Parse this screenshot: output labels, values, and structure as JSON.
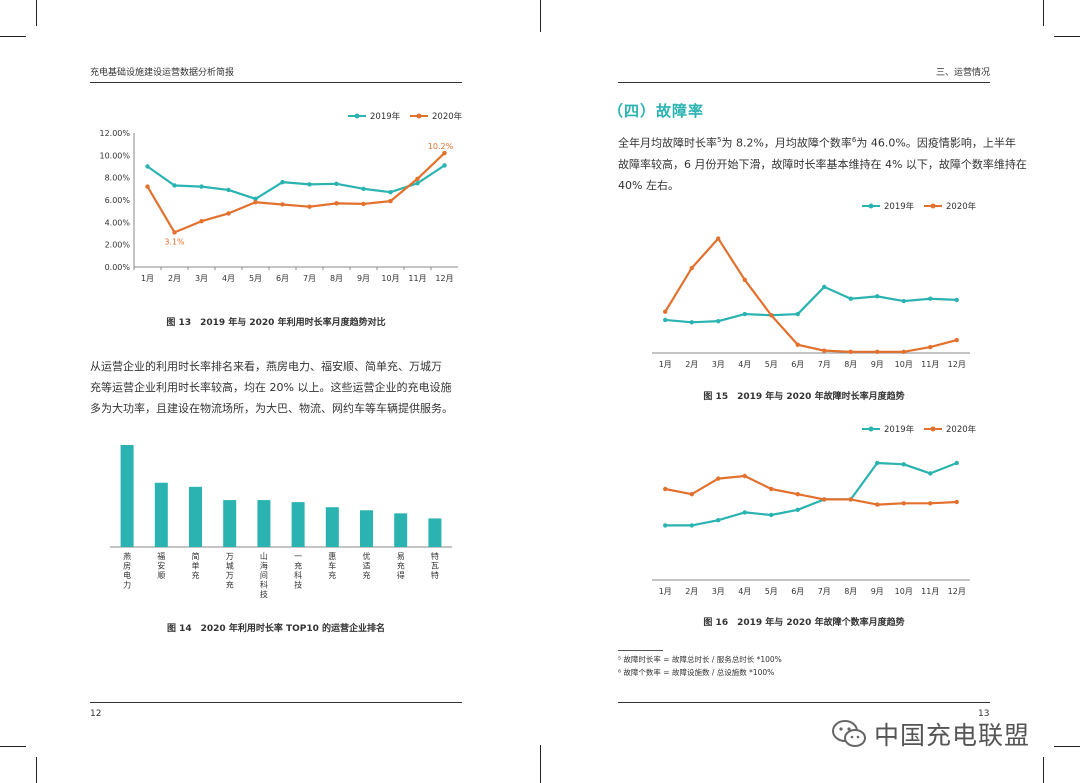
{
  "colors": {
    "teal": "#2ab3b1",
    "orange": "#e3712e"
  },
  "left_page": {
    "header": "充电基础设施建设运营数据分析简报",
    "page_number": "12",
    "paragraph": [
      "从运营企业的利用时长率排名来看，燕房电力、福安顺、简单充、万城万",
      "充等运营企业利用时长率较高，均在 20% 以上。这些运营企业的充电设施",
      "多为大功率，且建设在物流场所，为大巴、物流、网约车等车辆提供服务。"
    ]
  },
  "right_page": {
    "header": "三、运营情况",
    "page_number": "13",
    "section_title": "（四）故障率",
    "paragraph": [
      {
        "pre": "全年月均故障时长率",
        "sup1": "5",
        "mid": "为 8.2%，月均故障个数率",
        "sup2": "6",
        "post": "为 46.0%。因疫情影响，上半年"
      },
      "故障率较高，6 月份开始下滑，故障时长率基本维持在 4% 以下，故障个数率维持在",
      "40% 左右。"
    ],
    "footnotes": [
      "⁵ 故障时长率 = 故障总时长 / 服务总时长 *100%",
      "⁶ 故障个数率 = 故障设施数 / 总设施数 *100%"
    ]
  },
  "watermark": {
    "icon": "wechat-icon",
    "text": "中国充电联盟"
  },
  "chart_data": [
    {
      "id": "fig13",
      "type": "line",
      "title": "图 13　2019 年与 2020 年利用时长率月度趋势对比",
      "categories": [
        "1月",
        "2月",
        "3月",
        "4月",
        "5月",
        "6月",
        "7月",
        "8月",
        "9月",
        "10月",
        "11月",
        "12月"
      ],
      "yticks": [
        "0.00%",
        "2.00%",
        "4.00%",
        "6.00%",
        "8.00%",
        "10.00%",
        "12.00%"
      ],
      "ylim": [
        0,
        12
      ],
      "series": [
        {
          "name": "2019年",
          "color": "#2ab3b1",
          "values": [
            9.0,
            7.3,
            7.2,
            6.9,
            6.1,
            7.6,
            7.4,
            7.45,
            7.0,
            6.7,
            7.5,
            9.1
          ]
        },
        {
          "name": "2020年",
          "color": "#e3712e",
          "values": [
            7.2,
            3.1,
            4.1,
            4.8,
            5.8,
            5.6,
            5.4,
            5.7,
            5.65,
            5.9,
            7.9,
            10.2
          ]
        }
      ],
      "annotations": [
        {
          "series": 1,
          "index": 1,
          "label": "3.1%"
        },
        {
          "series": 1,
          "index": 11,
          "label": "10.2%"
        }
      ]
    },
    {
      "id": "fig14",
      "type": "bar",
      "title": "图 14　2020 年利用时长率 TOP10 的运营企业排名",
      "categories": [
        "燕房电力",
        "福安顺",
        "简单充",
        "万城万充",
        "山海间科技",
        "一充科技",
        "惠车充",
        "优适充",
        "易充得",
        "特瓦特"
      ],
      "values": [
        100,
        63,
        59,
        46,
        46,
        44,
        39,
        36,
        33,
        28
      ],
      "ylim": [
        0,
        100
      ]
    },
    {
      "id": "fig15",
      "type": "line",
      "title": "图 15　2019 年与 2020 年故障时长率月度趋势",
      "categories": [
        "1月",
        "2月",
        "3月",
        "4月",
        "5月",
        "6月",
        "7月",
        "8月",
        "9月",
        "10月",
        "11月",
        "12月"
      ],
      "ylim": [
        0,
        100
      ],
      "series": [
        {
          "name": "2019年",
          "color": "#2ab3b1",
          "values": [
            28,
            26,
            27,
            33,
            32,
            33,
            56,
            46,
            48,
            44,
            46,
            45
          ]
        },
        {
          "name": "2020年",
          "color": "#e3712e",
          "values": [
            35,
            72,
            97,
            62,
            32,
            7,
            2,
            1,
            1,
            1,
            5,
            11
          ]
        }
      ]
    },
    {
      "id": "fig16",
      "type": "line",
      "title": "图 16　2019 年与 2020 年故障个数率月度趋势",
      "categories": [
        "1月",
        "2月",
        "3月",
        "4月",
        "5月",
        "6月",
        "7月",
        "8月",
        "9月",
        "10月",
        "11月",
        "12月"
      ],
      "ylim": [
        0,
        100
      ],
      "series": [
        {
          "name": "2019年",
          "color": "#2ab3b1",
          "values": [
            42,
            42,
            46,
            52,
            50,
            54,
            62,
            62,
            90,
            89,
            82,
            90
          ]
        },
        {
          "name": "2020年",
          "color": "#e3712e",
          "values": [
            70,
            66,
            78,
            80,
            70,
            66,
            62,
            62,
            58,
            59,
            59,
            60
          ]
        }
      ]
    }
  ]
}
